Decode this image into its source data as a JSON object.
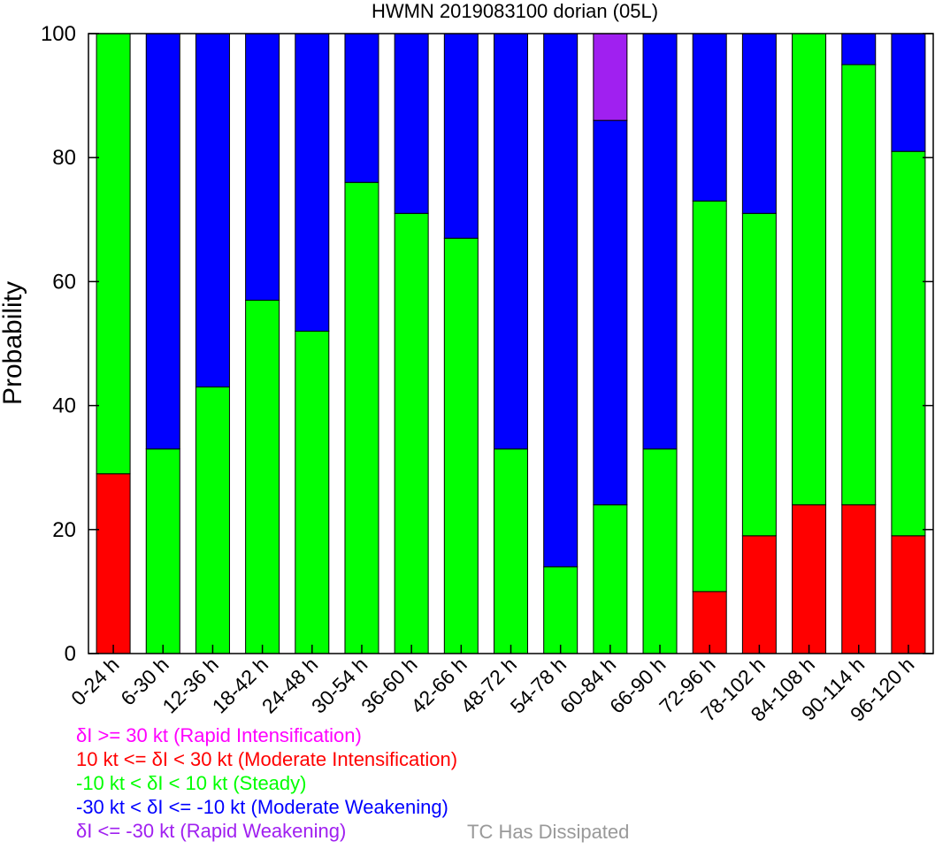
{
  "chart_data": {
    "type": "bar",
    "stacked": true,
    "title": "HWMN 2019083100 dorian (05L)",
    "ylabel": "Probability",
    "xlabel": "",
    "ylim": [
      0,
      100
    ],
    "yticks": [
      0,
      20,
      40,
      60,
      80,
      100
    ],
    "categories": [
      "0-24 h",
      "6-30 h",
      "12-36 h",
      "18-42 h",
      "24-48 h",
      "30-54 h",
      "36-60 h",
      "42-66 h",
      "48-72 h",
      "54-78 h",
      "60-84 h",
      "66-90 h",
      "72-96 h",
      "78-102 h",
      "84-108 h",
      "90-114 h",
      "96-120 h"
    ],
    "series": [
      {
        "key": "rapid_intensification",
        "color": "#ff00ff",
        "values": [
          0,
          0,
          0,
          0,
          0,
          0,
          0,
          0,
          0,
          0,
          0,
          0,
          0,
          0,
          0,
          0,
          0
        ]
      },
      {
        "key": "moderate_intensification",
        "color": "#ff0000",
        "values": [
          29,
          0,
          0,
          0,
          0,
          0,
          0,
          0,
          0,
          0,
          0,
          0,
          10,
          19,
          24,
          24,
          19
        ]
      },
      {
        "key": "steady",
        "color": "#00ff00",
        "values": [
          71,
          33,
          43,
          57,
          52,
          76,
          71,
          67,
          33,
          14,
          24,
          33,
          63,
          52,
          76,
          71,
          62
        ]
      },
      {
        "key": "moderate_weakening",
        "color": "#0000ff",
        "values": [
          0,
          67,
          57,
          43,
          48,
          24,
          29,
          33,
          67,
          86,
          62,
          67,
          27,
          29,
          0,
          5,
          19
        ]
      },
      {
        "key": "rapid_weakening",
        "color": "#a020f0",
        "values": [
          0,
          0,
          0,
          0,
          0,
          0,
          0,
          0,
          0,
          0,
          14,
          0,
          0,
          0,
          0,
          0,
          0
        ]
      }
    ],
    "legend": {
      "placement": "bottom-left",
      "entries": [
        {
          "text": "δI >= 30 kt (Rapid Intensification)",
          "color": "#ff00ff"
        },
        {
          "text": "10 kt <= δI < 30 kt (Moderate Intensification)",
          "color": "#ff0000"
        },
        {
          "text": "-10 kt < δI < 10 kt (Steady)",
          "color": "#00ff00"
        },
        {
          "text": "-30 kt < δI <= -10 kt (Moderate Weakening)",
          "color": "#0000ff"
        },
        {
          "text": "δI <= -30 kt (Rapid Weakening)",
          "color": "#a020f0"
        }
      ],
      "dissipated": {
        "text": "TC Has Dissipated",
        "color": "#999999"
      }
    },
    "grid": false
  }
}
